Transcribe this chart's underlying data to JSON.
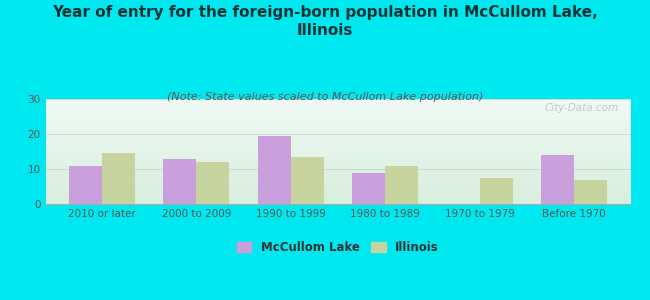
{
  "title": "Year of entry for the foreign-born population in McCullom Lake,\nIllinois",
  "subtitle": "(Note: State values scaled to McCullom Lake population)",
  "categories": [
    "2010 or later",
    "2000 to 2009",
    "1990 to 1999",
    "1980 to 1989",
    "1970 to 1979",
    "Before 1970"
  ],
  "mccullom_values": [
    11,
    13,
    19.5,
    9,
    0,
    14
  ],
  "illinois_values": [
    14.5,
    12,
    13.5,
    11,
    7.5,
    7
  ],
  "mccullom_color": "#c9a0dc",
  "illinois_color": "#c8d4a0",
  "background_color": "#00e8ef",
  "plot_bg_top": "#f0faf5",
  "plot_bg_bottom": "#d8eedd",
  "ylim": [
    0,
    30
  ],
  "yticks": [
    0,
    10,
    20,
    30
  ],
  "bar_width": 0.35,
  "title_fontsize": 11,
  "subtitle_fontsize": 8,
  "tick_fontsize": 7.5,
  "legend_fontsize": 8.5,
  "watermark": "City-Data.com",
  "title_color": "#003333",
  "subtitle_color": "#555555",
  "tick_color": "#555555"
}
